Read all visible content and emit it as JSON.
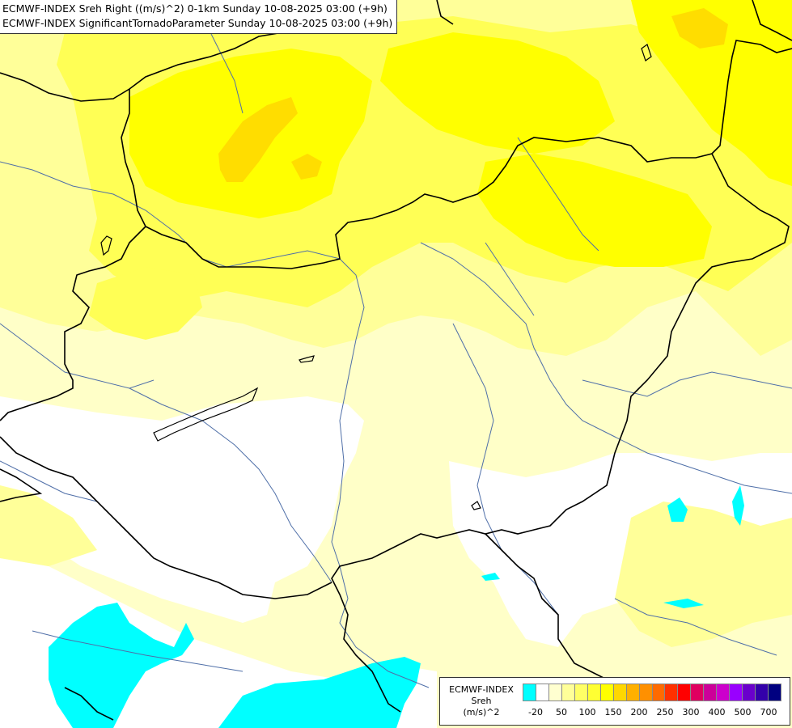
{
  "title": {
    "line1": "ECMWF-INDEX Sreh Right ((m/s)^2) 0-1km Sunday 10-08-2025 03:00 (+9h)",
    "line2": "ECMWF-INDEX SignificantTornadoParameter Sunday 10-08-2025 03:00 (+9h)"
  },
  "legend": {
    "title_lines": [
      "ECMWF-INDEX",
      "Sreh",
      "(m/s)^2"
    ],
    "colors": [
      "#00ffff",
      "#ffffff",
      "#ffffd0",
      "#ffff99",
      "#ffff66",
      "#ffff33",
      "#ffff00",
      "#ffd700",
      "#ffb000",
      "#ff9000",
      "#ff6a00",
      "#ff3000",
      "#ff0000",
      "#e00060",
      "#cc0099",
      "#cc00cc",
      "#9900ff",
      "#6a00cc",
      "#3300aa",
      "#000080"
    ],
    "ticks": [
      "-20",
      "50",
      "100",
      "150",
      "200",
      "250",
      "300",
      "400",
      "500",
      "700"
    ]
  },
  "map_layers": {
    "fill_colors": {
      "pale": "#ffffc8",
      "light": "#ffff99",
      "mid": "#ffff55",
      "strong": "#ffff00",
      "orange": "#ffdd00",
      "negative": "#00ffff",
      "none": "#ffffff"
    },
    "border_color": "#000000",
    "river_color": "#4f6fa8"
  }
}
